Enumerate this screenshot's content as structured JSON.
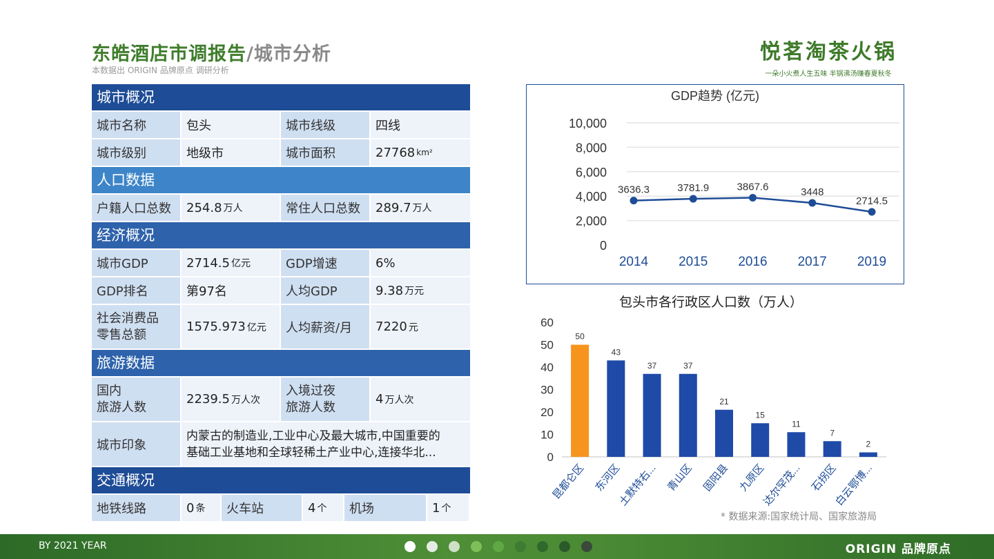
{
  "header": {
    "title_main": "东皓酒店市调报告",
    "title_sep": "/",
    "title_sub": "城市分析",
    "subtitle": "本数据出 ORIGIN 品牌原点 调研分析"
  },
  "brand": {
    "name": "悦茗淘茶火锅",
    "slogan": "一朵小火煮人生五味  半锅沸汤赚春夏秋冬"
  },
  "sections": {
    "overview": "城市概况",
    "population": "人口数据",
    "economy": "经济概况",
    "tourism": "旅游数据",
    "transport": "交通概况"
  },
  "overview": {
    "name_label": "城市名称",
    "name_value": "包头",
    "tier_label": "城市线级",
    "tier_value": "四线",
    "level_label": "城市级别",
    "level_value": "地级市",
    "area_label": "城市面积",
    "area_value": "27768",
    "area_unit": "km²"
  },
  "population": {
    "registered_label": "户籍人口总数",
    "registered_value": "254.8",
    "registered_unit": "万人",
    "resident_label": "常住人口总数",
    "resident_value": "289.7",
    "resident_unit": "万人"
  },
  "economy": {
    "gdp_label": "城市GDP",
    "gdp_value": "2714.5",
    "gdp_unit": "亿元",
    "growth_label": "GDP增速",
    "growth_value": "6%",
    "rank_label": "GDP排名",
    "rank_value": "第97名",
    "percap_label": "人均GDP",
    "percap_value": "9.38",
    "percap_unit": "万元",
    "retail_label_1": "社会消费品",
    "retail_label_2": "零售总额",
    "retail_value": "1575.973",
    "retail_unit": "亿元",
    "salary_label": "人均薪资/月",
    "salary_value": "7220",
    "salary_unit": "元"
  },
  "tourism": {
    "domestic_label_1": "国内",
    "domestic_label_2": "旅游人数",
    "domestic_value": "2239.5",
    "domestic_unit": "万人次",
    "inbound_label_1": "入境过夜",
    "inbound_label_2": "旅游人数",
    "inbound_value": "4",
    "inbound_unit": "万人次",
    "impression_label": "城市印象",
    "impression_line1": "内蒙古的制造业,工业中心及最大城市,中国重要的",
    "impression_line2": "基础工业基地和全球轻稀土产业中心,连接华北..."
  },
  "transport": {
    "metro_label": "地铁线路",
    "metro_value": "0",
    "metro_unit": "条",
    "train_label": "火车站",
    "train_value": "4",
    "train_unit": "个",
    "airport_label": "机场",
    "airport_value": "1",
    "airport_unit": "个"
  },
  "chart_data": [
    {
      "type": "line",
      "title": "GDP趋势 (亿元)",
      "x": [
        "2014",
        "2015",
        "2016",
        "2017",
        "2019"
      ],
      "values": [
        3636.3,
        3781.9,
        3867.6,
        3448,
        2714.5
      ],
      "data_labels": [
        "3636.3",
        "3781.9",
        "3867.6",
        "3448",
        "2714.5"
      ],
      "y_ticks": [
        "0",
        "2,000",
        "4,000",
        "6,000",
        "8,000",
        "10,000"
      ],
      "ylim": [
        0,
        10000
      ],
      "grid": true,
      "color": "#1e4c96"
    },
    {
      "type": "bar",
      "title": "包头市各行政区人口数（万人）",
      "categories": [
        "昆都仑区",
        "东河区",
        "土默特右...",
        "青山区",
        "固阳县",
        "九原区",
        "达尔罕茂...",
        "石拐区",
        "白云鄂博..."
      ],
      "values": [
        50,
        43,
        37,
        37,
        21,
        15,
        11,
        7,
        2
      ],
      "y_ticks": [
        "0",
        "10",
        "20",
        "30",
        "40",
        "50",
        "60"
      ],
      "ylim": [
        0,
        60
      ],
      "colors": [
        "#f7941d",
        "#1f4aa8",
        "#1f4aa8",
        "#1f4aa8",
        "#1f4aa8",
        "#1f4aa8",
        "#1f4aa8",
        "#1f4aa8",
        "#1f4aa8"
      ]
    }
  ],
  "source_note": "* 数据来源:国家统计局、国家旅游局",
  "footer": {
    "left": "BY 2021 YEAR",
    "right": "ORIGIN 品牌原点",
    "dot_colors": [
      "#ffffff",
      "#e6ebe3",
      "#cfe0c6",
      "#7fbf5a",
      "#5fa845",
      "#3c7c33",
      "#2f6a2c",
      "#2a5a2a",
      "#3a4a3a"
    ]
  }
}
